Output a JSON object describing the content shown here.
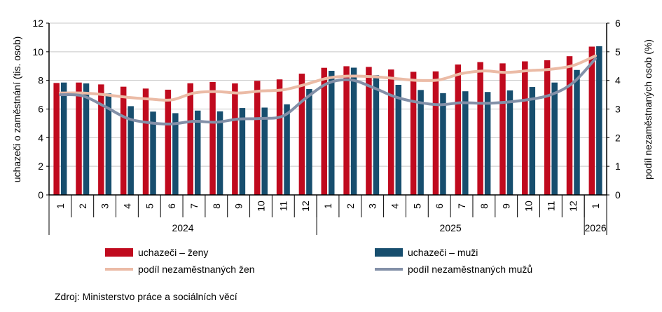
{
  "chart_data": {
    "type": "bar+line",
    "categories": [
      "1",
      "2",
      "3",
      "4",
      "5",
      "6",
      "7",
      "8",
      "9",
      "10",
      "11",
      "12",
      "1",
      "2",
      "3",
      "4",
      "5",
      "6",
      "7",
      "8",
      "9",
      "10",
      "11",
      "12",
      "1"
    ],
    "year_groups": [
      {
        "label": "2024",
        "count": 12
      },
      {
        "label": "2025",
        "count": 12
      },
      {
        "label": "2026",
        "count": 1
      }
    ],
    "ylabel": "uchazeči o zaměstnání (tis. osob)",
    "ylabel_right": "podíl nezaměstnaných osob (%)",
    "ylim": [
      0,
      12
    ],
    "ylim_right": [
      0,
      6
    ],
    "yticks": [
      0,
      2,
      4,
      6,
      8,
      10,
      12
    ],
    "yticks_right": [
      0,
      1,
      2,
      3,
      4,
      5,
      6
    ],
    "grid": true,
    "legend_position": "bottom",
    "series": [
      {
        "name": "uchazeči – ženy",
        "type": "bar",
        "axis": "left",
        "color": "#c00a1e",
        "values": [
          7.82,
          7.85,
          7.72,
          7.56,
          7.43,
          7.35,
          7.8,
          7.89,
          7.79,
          7.97,
          8.07,
          8.47,
          8.88,
          8.99,
          8.94,
          8.76,
          8.6,
          8.63,
          9.11,
          9.28,
          9.19,
          9.33,
          9.41,
          9.69,
          10.36
        ]
      },
      {
        "name": "uchazeči – muži",
        "type": "bar",
        "axis": "left",
        "color": "#174e6e",
        "values": [
          7.85,
          7.79,
          7.09,
          6.2,
          5.82,
          5.71,
          5.89,
          5.84,
          6.07,
          6.1,
          6.33,
          7.4,
          8.67,
          8.89,
          8.36,
          7.69,
          7.33,
          7.11,
          7.24,
          7.19,
          7.3,
          7.54,
          7.85,
          8.73,
          10.39
        ]
      },
      {
        "name": "podíl nezaměstnaných žen",
        "type": "line",
        "axis": "right",
        "color": "#ebbba6",
        "values": [
          3.56,
          3.56,
          3.5,
          3.41,
          3.35,
          3.32,
          3.56,
          3.61,
          3.56,
          3.63,
          3.67,
          3.86,
          4.08,
          4.15,
          4.13,
          4.07,
          4.0,
          4.02,
          4.24,
          4.33,
          4.28,
          4.34,
          4.39,
          4.52,
          4.86
        ]
      },
      {
        "name": "podíl nezaměstnaných mužů",
        "type": "line",
        "axis": "right",
        "color": "#8390a8",
        "values": [
          3.5,
          3.46,
          3.09,
          2.68,
          2.52,
          2.48,
          2.57,
          2.54,
          2.65,
          2.67,
          2.76,
          3.37,
          3.9,
          4.02,
          3.76,
          3.43,
          3.24,
          3.15,
          3.22,
          3.2,
          3.24,
          3.33,
          3.5,
          3.92,
          4.76
        ]
      }
    ]
  },
  "source": "Zdroj: Ministerstvo práce a sociálních věcí"
}
